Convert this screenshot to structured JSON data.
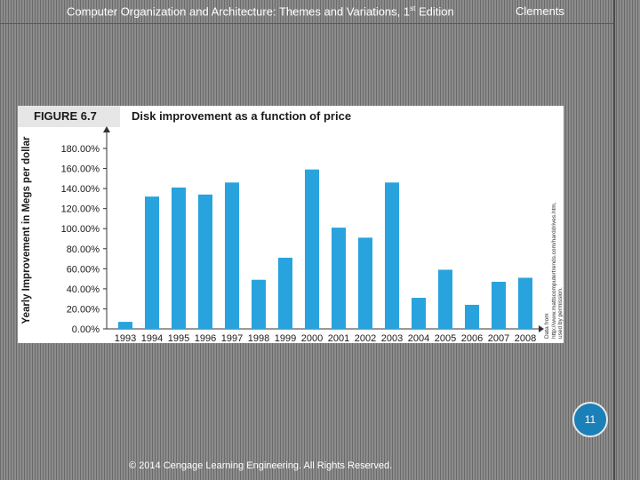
{
  "header": {
    "title_main": "Computer Organization and Architecture: Themes and Variations, 1",
    "title_sup": "st",
    "title_end": " Edition",
    "author": "Clements"
  },
  "figure": {
    "label": "FIGURE 6.7",
    "caption": "Disk improvement as a function of price",
    "credit": "Data from http://www.mattscomputertrends.com/harddrives.htm, used by permission."
  },
  "chart_data": {
    "type": "bar",
    "title": "Disk improvement as a function of price",
    "xlabel": "",
    "ylabel": "Yearly Improvement in Megs per dollar",
    "categories": [
      "1993",
      "1994",
      "1995",
      "1996",
      "1997",
      "1998",
      "1999",
      "2000",
      "2001",
      "2002",
      "2003",
      "2004",
      "2005",
      "2006",
      "2007",
      "2008"
    ],
    "values": [
      7,
      132,
      141,
      134,
      146,
      49,
      71,
      159,
      101,
      91,
      146,
      31,
      59,
      24,
      47,
      51
    ],
    "ylim": [
      0,
      180
    ],
    "yticks": [
      0,
      20,
      40,
      60,
      80,
      100,
      120,
      140,
      160,
      180
    ],
    "ytick_labels": [
      "0.00%",
      "20.00%",
      "40.00%",
      "60.00%",
      "80.00%",
      "100.00%",
      "120.00%",
      "140.00%",
      "160.00%",
      "180.00%"
    ],
    "bar_color": "#29a3dd"
  },
  "page_number": "11",
  "footer": "© 2014 Cengage Learning Engineering. All Rights Reserved."
}
